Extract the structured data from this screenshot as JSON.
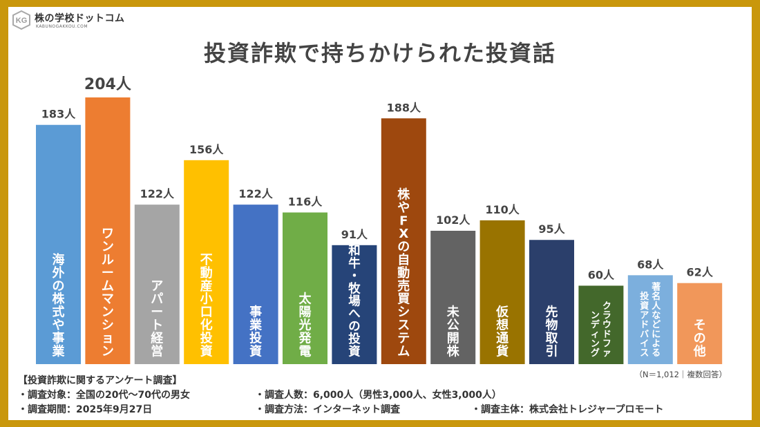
{
  "logo": {
    "name": "株の学校ドットコム",
    "sub": "KABUNOGAKKOU.COM",
    "mark": "KG"
  },
  "title": "投資詐欺で持ちかけられた投資話",
  "note": "（N＝1,012｜複数回答）",
  "footer": {
    "heading": "【投資詐欺に関するアンケート調査】",
    "target": "・調査対象：全国の20代〜70代の男女",
    "period": "・調査期間：2025年9月27日",
    "count": "・調査人数：6,000人（男性3,000人、女性3,000人）",
    "method": "・調査方法：インターネット調査",
    "organizer": "・調査主体：株式会社トレジャープロモート"
  },
  "colors": {
    "border": "#C9970C",
    "text": "#444444"
  },
  "chart_data": {
    "type": "bar",
    "title": "投資詐欺で持ちかけられた投資話",
    "unit": "人",
    "ylim": [
      0,
      204
    ],
    "grid": false,
    "categories": [
      "海外の株式や事業",
      "ワンルームマンション",
      "アパート経営",
      "不動産小口化投資",
      "事業投資",
      "太陽光発電",
      "和牛・牧場への投資",
      "株やFXの自動売買システム",
      "未公開株",
      "仮想通貨",
      "先物取引",
      "クラウドファンディング",
      "著名人などによる投資アドバイス",
      "その他"
    ],
    "values": [
      183,
      204,
      122,
      156,
      122,
      116,
      91,
      188,
      102,
      110,
      95,
      60,
      68,
      62
    ],
    "value_labels": [
      "183人",
      "204人",
      "122人",
      "156人",
      "122人",
      "116人",
      "91人",
      "188人",
      "102人",
      "110人",
      "95人",
      "60人",
      "68人",
      "62人"
    ],
    "bar_colors": [
      "#5B9BD5",
      "#ED7D31",
      "#A5A5A5",
      "#FFC000",
      "#4472C4",
      "#70AD47",
      "#264478",
      "#9E480E",
      "#636363",
      "#997300",
      "#2B3F6B",
      "#43682B",
      "#7CAFDD",
      "#F1975A"
    ]
  }
}
